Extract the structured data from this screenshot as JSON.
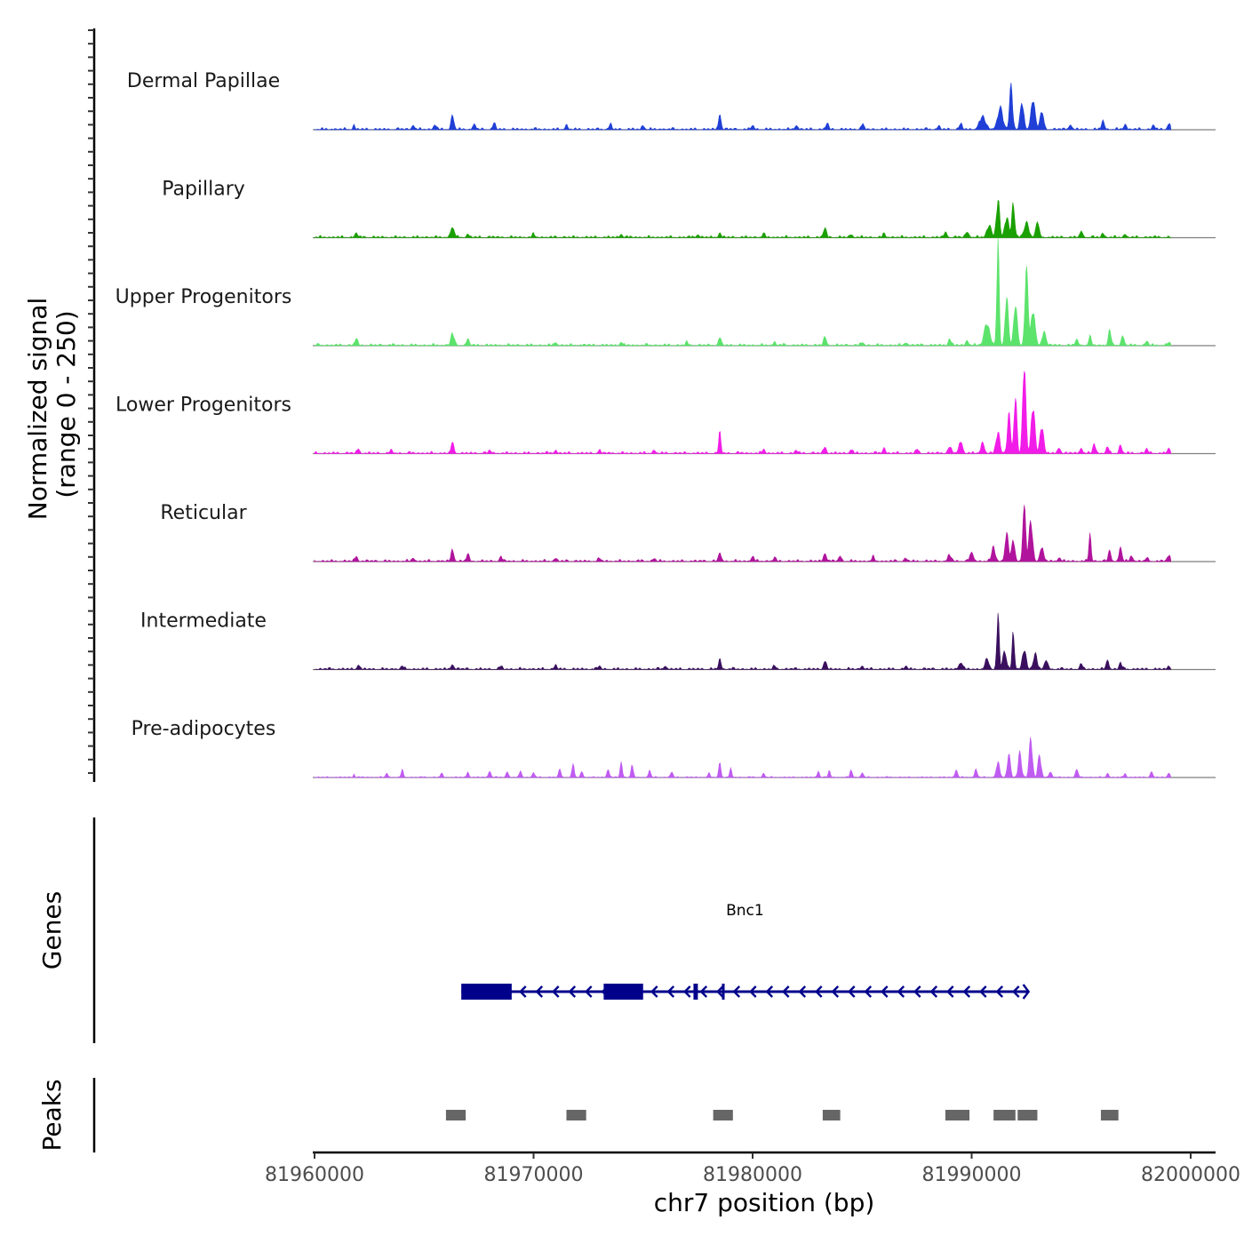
{
  "chart_data": {
    "type": "area",
    "title": "",
    "ylabel_line1": "Normalized signal",
    "ylabel_line2": "(range 0 - 250)",
    "yrange": [
      0,
      250
    ],
    "xlabel": "chr7 position (bp)",
    "xrange": [
      81960000,
      82000000
    ],
    "xticks": [
      81960000,
      81970000,
      81980000,
      81990000,
      82000000
    ],
    "xtick_labels": [
      "81960000",
      "81970000",
      "81980000",
      "81990000",
      "82000000"
    ],
    "signal_span": [
      81960000,
      81999100
    ],
    "tracks": [
      {
        "name": "Dermal Papillae",
        "color": "#1f3fd6",
        "baseline": 2,
        "peaks": [
          [
            81961800,
            5,
            40
          ],
          [
            81964500,
            4,
            60
          ],
          [
            81965500,
            5,
            60
          ],
          [
            81966300,
            15,
            60
          ],
          [
            81967300,
            5,
            60
          ],
          [
            81968200,
            6,
            60
          ],
          [
            81971500,
            4,
            60
          ],
          [
            81973500,
            5,
            60
          ],
          [
            81975000,
            4,
            60
          ],
          [
            81978500,
            14,
            60
          ],
          [
            81980000,
            4,
            60
          ],
          [
            81982000,
            4,
            60
          ],
          [
            81983400,
            6,
            60
          ],
          [
            81985000,
            5,
            60
          ],
          [
            81988500,
            3,
            60
          ],
          [
            81989500,
            6,
            60
          ],
          [
            81990500,
            12,
            140
          ],
          [
            81991300,
            20,
            120
          ],
          [
            81991800,
            42,
            70
          ],
          [
            81992300,
            26,
            80
          ],
          [
            81992800,
            30,
            90
          ],
          [
            81993200,
            18,
            80
          ],
          [
            81994500,
            5,
            60
          ],
          [
            81996000,
            9,
            60
          ],
          [
            81997000,
            5,
            60
          ],
          [
            81998300,
            4,
            60
          ],
          [
            81999000,
            6,
            60
          ]
        ]
      },
      {
        "name": "Papillary",
        "color": "#1aa000",
        "baseline": 2,
        "peaks": [
          [
            81961900,
            4,
            60
          ],
          [
            81966300,
            10,
            80
          ],
          [
            81967000,
            3,
            60
          ],
          [
            81970000,
            3,
            60
          ],
          [
            81974000,
            3,
            60
          ],
          [
            81977500,
            3,
            60
          ],
          [
            81978500,
            4,
            60
          ],
          [
            81980500,
            3,
            60
          ],
          [
            81983300,
            10,
            60
          ],
          [
            81984500,
            3,
            60
          ],
          [
            81986000,
            3,
            60
          ],
          [
            81988800,
            4,
            80
          ],
          [
            81989800,
            5,
            80
          ],
          [
            81990800,
            12,
            100
          ],
          [
            81991200,
            38,
            70
          ],
          [
            81991600,
            20,
            90
          ],
          [
            81991900,
            36,
            60
          ],
          [
            81992500,
            15,
            100
          ],
          [
            81993000,
            14,
            80
          ],
          [
            81995000,
            6,
            60
          ],
          [
            81996000,
            4,
            60
          ],
          [
            81997000,
            3,
            60
          ]
        ]
      },
      {
        "name": "Upper Progenitors",
        "color": "#5ce36c",
        "baseline": 2,
        "peaks": [
          [
            81961900,
            7,
            60
          ],
          [
            81966300,
            12,
            70
          ],
          [
            81967000,
            6,
            60
          ],
          [
            81971000,
            3,
            60
          ],
          [
            81974000,
            3,
            60
          ],
          [
            81977000,
            3,
            60
          ],
          [
            81978500,
            7,
            60
          ],
          [
            81981000,
            3,
            60
          ],
          [
            81983300,
            9,
            60
          ],
          [
            81985000,
            3,
            60
          ],
          [
            81987000,
            3,
            60
          ],
          [
            81989000,
            7,
            60
          ],
          [
            81989800,
            5,
            60
          ],
          [
            81990700,
            22,
            120
          ],
          [
            81991200,
            110,
            50
          ],
          [
            81991600,
            50,
            70
          ],
          [
            81992000,
            40,
            80
          ],
          [
            81992500,
            75,
            70
          ],
          [
            81992800,
            35,
            90
          ],
          [
            81993300,
            14,
            80
          ],
          [
            81994800,
            6,
            60
          ],
          [
            81995400,
            8,
            60
          ],
          [
            81996300,
            14,
            60
          ],
          [
            81996900,
            10,
            60
          ],
          [
            81998000,
            4,
            60
          ],
          [
            81999000,
            3,
            60
          ]
        ]
      },
      {
        "name": "Lower Progenitors",
        "color": "#f21ce8",
        "baseline": 2,
        "peaks": [
          [
            81962000,
            4,
            60
          ],
          [
            81963500,
            3,
            60
          ],
          [
            81966300,
            11,
            60
          ],
          [
            81968000,
            3,
            60
          ],
          [
            81971000,
            3,
            60
          ],
          [
            81973000,
            3,
            60
          ],
          [
            81975500,
            3,
            60
          ],
          [
            81978500,
            20,
            50
          ],
          [
            81980500,
            4,
            60
          ],
          [
            81982000,
            3,
            60
          ],
          [
            81983300,
            7,
            60
          ],
          [
            81984500,
            4,
            60
          ],
          [
            81986000,
            5,
            60
          ],
          [
            81987500,
            4,
            60
          ],
          [
            81989000,
            6,
            80
          ],
          [
            81989500,
            12,
            80
          ],
          [
            81990500,
            10,
            80
          ],
          [
            81991200,
            22,
            80
          ],
          [
            81991700,
            38,
            70
          ],
          [
            81992000,
            60,
            60
          ],
          [
            81992400,
            92,
            70
          ],
          [
            81992800,
            48,
            80
          ],
          [
            81993200,
            28,
            80
          ],
          [
            81994000,
            6,
            60
          ],
          [
            81995000,
            5,
            60
          ],
          [
            81995600,
            10,
            60
          ],
          [
            81996200,
            6,
            60
          ],
          [
            81996800,
            8,
            60
          ],
          [
            81998000,
            4,
            60
          ],
          [
            81999000,
            5,
            60
          ]
        ]
      },
      {
        "name": "Reticular",
        "color": "#b0149c",
        "baseline": 2,
        "peaks": [
          [
            81961900,
            5,
            60
          ],
          [
            81964500,
            3,
            60
          ],
          [
            81966300,
            12,
            60
          ],
          [
            81967000,
            7,
            60
          ],
          [
            81968500,
            4,
            60
          ],
          [
            81971000,
            3,
            60
          ],
          [
            81973000,
            3,
            60
          ],
          [
            81975500,
            3,
            60
          ],
          [
            81978500,
            8,
            60
          ],
          [
            81980000,
            5,
            60
          ],
          [
            81981000,
            3,
            60
          ],
          [
            81983300,
            9,
            60
          ],
          [
            81984000,
            5,
            60
          ],
          [
            81985500,
            4,
            60
          ],
          [
            81987000,
            3,
            60
          ],
          [
            81989000,
            6,
            80
          ],
          [
            81990000,
            8,
            80
          ],
          [
            81991000,
            14,
            80
          ],
          [
            81991600,
            30,
            70
          ],
          [
            81991900,
            22,
            70
          ],
          [
            81992400,
            62,
            60
          ],
          [
            81992700,
            40,
            80
          ],
          [
            81993200,
            14,
            80
          ],
          [
            81994000,
            4,
            60
          ],
          [
            81995400,
            26,
            50
          ],
          [
            81996300,
            10,
            60
          ],
          [
            81996800,
            14,
            60
          ],
          [
            81997300,
            6,
            60
          ],
          [
            81998000,
            3,
            60
          ],
          [
            81999000,
            6,
            60
          ]
        ]
      },
      {
        "name": "Intermediate",
        "color": "#3a0f5e",
        "baseline": 2,
        "peaks": [
          [
            81962000,
            4,
            60
          ],
          [
            81964000,
            3,
            60
          ],
          [
            81966300,
            5,
            60
          ],
          [
            81968500,
            3,
            60
          ],
          [
            81971000,
            4,
            60
          ],
          [
            81973000,
            3,
            60
          ],
          [
            81976000,
            3,
            60
          ],
          [
            81978500,
            9,
            60
          ],
          [
            81981000,
            3,
            60
          ],
          [
            81983300,
            9,
            60
          ],
          [
            81985000,
            3,
            60
          ],
          [
            81987000,
            3,
            60
          ],
          [
            81989500,
            7,
            80
          ],
          [
            81990700,
            10,
            80
          ],
          [
            81991200,
            58,
            50
          ],
          [
            81991500,
            18,
            80
          ],
          [
            81991900,
            40,
            50
          ],
          [
            81992400,
            20,
            80
          ],
          [
            81992900,
            16,
            80
          ],
          [
            81993400,
            8,
            80
          ],
          [
            81995000,
            5,
            60
          ],
          [
            81996200,
            9,
            60
          ],
          [
            81996800,
            6,
            60
          ],
          [
            81999000,
            3,
            60
          ]
        ]
      },
      {
        "name": "Pre-adipocytes",
        "color": "#c05bf2",
        "baseline": 1,
        "peaks": [
          [
            81961800,
            4,
            30
          ],
          [
            81963300,
            4,
            50
          ],
          [
            81964000,
            7,
            50
          ],
          [
            81965800,
            4,
            50
          ],
          [
            81967000,
            5,
            50
          ],
          [
            81968000,
            7,
            50
          ],
          [
            81968800,
            6,
            50
          ],
          [
            81969400,
            6,
            50
          ],
          [
            81970000,
            5,
            50
          ],
          [
            81971200,
            8,
            50
          ],
          [
            81971800,
            14,
            50
          ],
          [
            81972200,
            6,
            50
          ],
          [
            81973400,
            9,
            50
          ],
          [
            81974000,
            14,
            50
          ],
          [
            81974500,
            12,
            50
          ],
          [
            81975300,
            7,
            50
          ],
          [
            81976300,
            6,
            50
          ],
          [
            81978000,
            4,
            50
          ],
          [
            81978500,
            14,
            50
          ],
          [
            81979000,
            8,
            50
          ],
          [
            81980500,
            4,
            50
          ],
          [
            81983000,
            6,
            50
          ],
          [
            81983500,
            6,
            50
          ],
          [
            81984500,
            8,
            50
          ],
          [
            81985000,
            5,
            50
          ],
          [
            81989300,
            7,
            60
          ],
          [
            81990200,
            8,
            60
          ],
          [
            81991200,
            16,
            70
          ],
          [
            81991700,
            22,
            70
          ],
          [
            81992200,
            24,
            70
          ],
          [
            81992700,
            40,
            70
          ],
          [
            81993100,
            22,
            70
          ],
          [
            81993600,
            6,
            60
          ],
          [
            81994800,
            8,
            60
          ],
          [
            81996200,
            4,
            50
          ],
          [
            81997000,
            4,
            50
          ],
          [
            81998200,
            6,
            50
          ],
          [
            81999000,
            5,
            50
          ]
        ]
      }
    ],
    "genes": {
      "label": "Genes",
      "name": "Bnc1",
      "strand": "-",
      "start": 81966700,
      "end": 81992600,
      "exons": [
        [
          81966700,
          81969000
        ],
        [
          81973200,
          81975000
        ],
        [
          81977300,
          81977500
        ],
        [
          81978600,
          81978650
        ]
      ],
      "color": "#00008b"
    },
    "peaks_track": {
      "label": "Peaks",
      "color": "#666666",
      "regions": [
        [
          81966000,
          81966900
        ],
        [
          81971500,
          81972400
        ],
        [
          81978200,
          81979100
        ],
        [
          81983200,
          81984000
        ],
        [
          81988800,
          81989900
        ],
        [
          81991000,
          81992000
        ],
        [
          81992100,
          81993000
        ],
        [
          81995900,
          81996700
        ]
      ]
    }
  }
}
